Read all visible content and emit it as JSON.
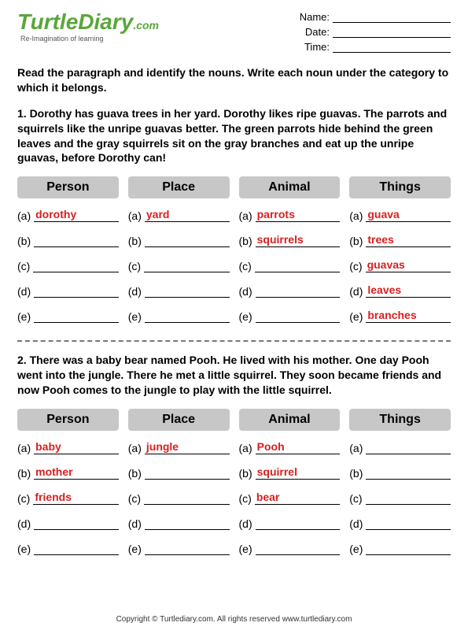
{
  "logo": {
    "main": "TurtleDiary",
    "suffix": ".com",
    "tagline": "Re-Imagination of learning"
  },
  "meta": {
    "name_label": "Name:",
    "date_label": "Date:",
    "time_label": "Time:"
  },
  "instructions": "Read the paragraph and identify the nouns. Write each noun under the category to which it belongs.",
  "q1": {
    "text": "1. Dorothy has guava trees in her yard. Dorothy likes ripe guavas. The parrots and squirrels like the unripe guavas better. The green parrots hide behind the green leaves and the gray squirrels sit on the gray branches and eat up the unripe guavas, before Dorothy can!",
    "headers": {
      "person": "Person",
      "place": "Place",
      "animal": "Animal",
      "things": "Things"
    },
    "letters": [
      "(a)",
      "(b)",
      "(c)",
      "(d)",
      "(e)"
    ],
    "person": [
      "dorothy",
      "",
      "",
      "",
      ""
    ],
    "place": [
      "yard",
      "",
      "",
      "",
      ""
    ],
    "animal": [
      "parrots",
      "squirrels",
      "",
      "",
      ""
    ],
    "things": [
      "guava",
      "trees",
      "guavas",
      "leaves",
      "branches"
    ]
  },
  "q2": {
    "text": "2. There was a baby bear named Pooh. He lived with his mother. One day Pooh went into the jungle. There he met a little squirrel. They soon became friends and now Pooh comes to the jungle to play with the little squirrel.",
    "headers": {
      "person": "Person",
      "place": "Place",
      "animal": "Animal",
      "things": "Things"
    },
    "letters": [
      "(a)",
      "(b)",
      "(c)",
      "(d)",
      "(e)"
    ],
    "person": [
      "baby",
      "mother",
      "friends",
      "",
      ""
    ],
    "place": [
      "jungle",
      "",
      "",
      "",
      ""
    ],
    "animal": [
      "Pooh",
      "squirrel",
      "bear",
      "",
      ""
    ],
    "things": [
      "",
      "",
      "",
      "",
      ""
    ]
  },
  "footer": "Copyright © Turtlediary.com. All rights reserved   www.turtlediary.com"
}
